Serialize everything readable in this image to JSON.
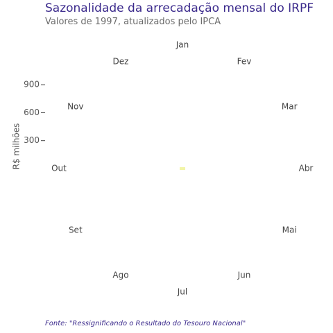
{
  "title": "Sazonalidade da arrecadação mensal do IRPF",
  "subtitle": "Valores de 1997, atualizados pelo IPCA",
  "caption": "Fonte: \"Ressignificando o Resultado do Tesouro Nacional\"",
  "chart_data": {
    "type": "radial",
    "title": "Sazonalidade da arrecadação mensal do IRPF",
    "subtitle": "Valores de 1997, atualizados pelo IPCA",
    "ylabel": "R$ milhões",
    "categories": [
      "Jan",
      "Fev",
      "Mar",
      "Abr",
      "Mai",
      "Jun",
      "Jul",
      "Ago",
      "Set",
      "Out",
      "Nov",
      "Dez"
    ],
    "yticks": [
      300,
      600,
      900
    ],
    "ylim": [
      0,
      900
    ],
    "series": [
      {
        "values": [
          null,
          null,
          null,
          null,
          null,
          null,
          null,
          null,
          null,
          null,
          null,
          null
        ]
      }
    ],
    "center_marker_color": "#f2f5a8",
    "grid": false,
    "legend": "none"
  },
  "colors": {
    "title": "#3b2a8c",
    "subtitle": "#6b6b6b",
    "labels": "#444444",
    "caption": "#3b2a8c"
  }
}
